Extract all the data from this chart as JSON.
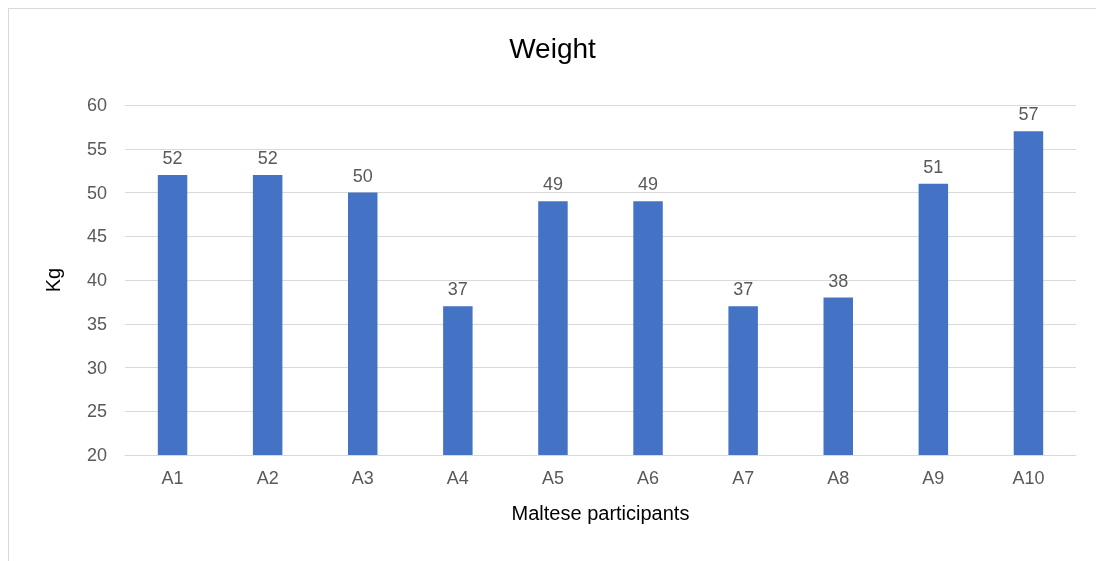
{
  "chart_data": {
    "type": "bar",
    "title": "Weight",
    "xlabel": "Maltese participants",
    "ylabel": "Kg",
    "categories": [
      "A1",
      "A2",
      "A3",
      "A4",
      "A5",
      "A6",
      "A7",
      "A8",
      "A9",
      "A10"
    ],
    "values": [
      52,
      52,
      50,
      37,
      49,
      49,
      37,
      38,
      51,
      57
    ],
    "color": "#4472c4",
    "ylim": [
      20,
      60
    ],
    "yticks": [
      20,
      25,
      30,
      35,
      40,
      45,
      50,
      55,
      60
    ],
    "grid": "y",
    "data_labels": true
  }
}
